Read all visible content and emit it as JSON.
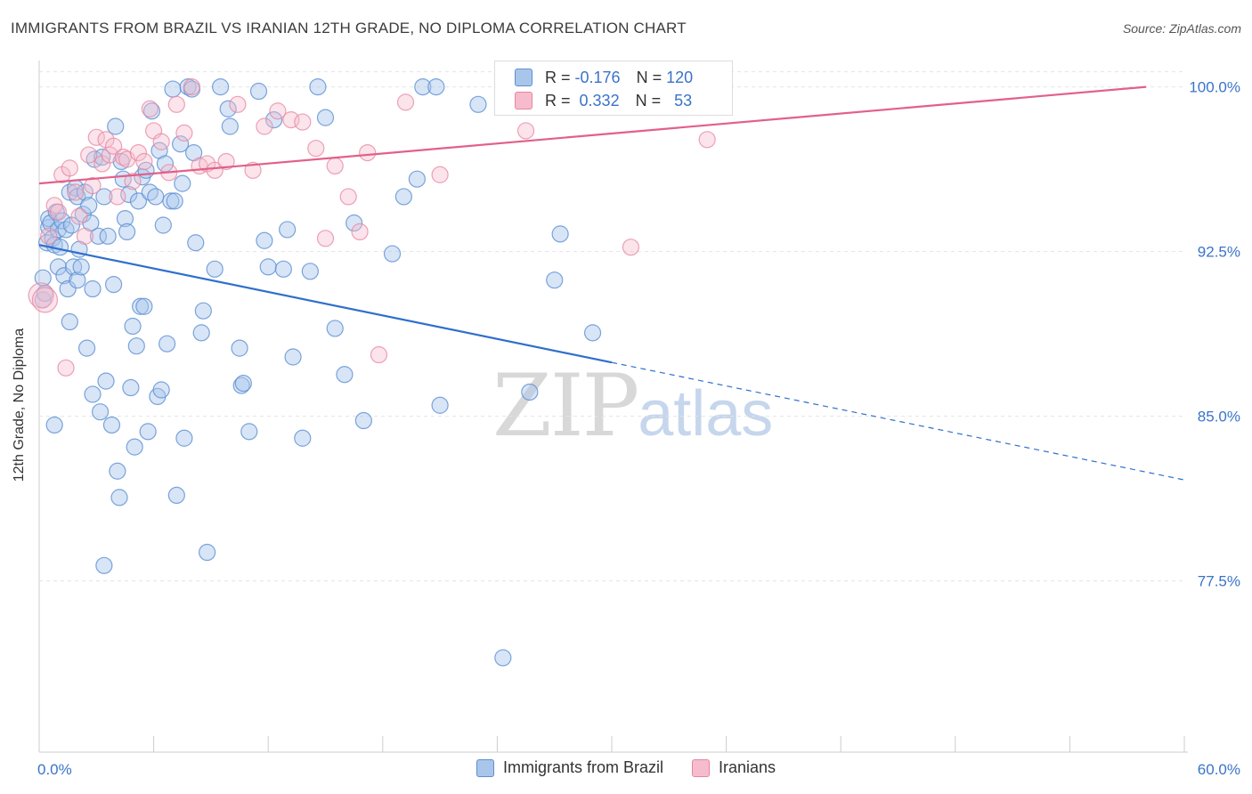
{
  "title": "IMMIGRANTS FROM BRAZIL VS IRANIAN 12TH GRADE, NO DIPLOMA CORRELATION CHART",
  "source": "Source: ZipAtlas.com",
  "watermark": {
    "zip": "ZIP",
    "atlas": "atlas"
  },
  "legend_top": {
    "rows": [
      {
        "r_label": "R =",
        "r_value": "-0.176",
        "n_label": "N =",
        "n_value": "120"
      },
      {
        "r_label": "R =",
        "r_value": "0.332",
        "n_label": "N =",
        "n_value": "53"
      }
    ]
  },
  "colors": {
    "blue_fill": "#a9c6ea",
    "blue_stroke": "#5b8fd3",
    "blue_line": "#2f6fcc",
    "pink_fill": "#f6bccd",
    "pink_stroke": "#e7849f",
    "pink_line": "#e2608a",
    "grid": "#e4e4e4",
    "tick_label": "#3a73c9"
  },
  "chart_data": {
    "type": "scatter",
    "title": "IMMIGRANTS FROM BRAZIL VS IRANIAN 12TH GRADE, NO DIPLOMA CORRELATION CHART",
    "xlabel": "",
    "ylabel": "12th Grade, No Diploma",
    "xlim": [
      0,
      60
    ],
    "ylim": [
      69.7,
      101.2
    ],
    "x_tick_labels": [
      {
        "value": 0,
        "label": "0.0%"
      },
      {
        "value": 60,
        "label": "60.0%"
      }
    ],
    "y_tick_labels": [
      {
        "value": 100.0,
        "label": "100.0%"
      },
      {
        "value": 92.5,
        "label": "92.5%"
      },
      {
        "value": 85.0,
        "label": "85.0%"
      },
      {
        "value": 77.5,
        "label": "77.5%"
      }
    ],
    "x_minor_ticks": [
      0,
      6,
      12,
      18,
      24,
      30,
      36,
      42,
      48,
      54,
      60
    ],
    "grid": true,
    "legend_position": "bottom",
    "series": [
      {
        "name": "Immigrants from Brazil",
        "color": "#a9c6ea",
        "stats": {
          "R": -0.176,
          "N": 120
        },
        "trend": {
          "x0": 0,
          "y0": 92.8,
          "x_solid_end": 30,
          "x1": 60,
          "y1": 82.1
        },
        "points": [
          [
            0.2,
            91.3
          ],
          [
            0.2,
            90.3
          ],
          [
            0.3,
            90.6
          ],
          [
            0.4,
            92.9
          ],
          [
            0.5,
            93.6
          ],
          [
            0.5,
            94.0
          ],
          [
            0.6,
            93.8
          ],
          [
            0.7,
            93.1
          ],
          [
            0.8,
            92.8
          ],
          [
            0.9,
            94.3
          ],
          [
            1.0,
            93.5
          ],
          [
            1.0,
            91.8
          ],
          [
            1.1,
            92.7
          ],
          [
            1.2,
            93.9
          ],
          [
            1.3,
            91.4
          ],
          [
            1.4,
            93.5
          ],
          [
            1.5,
            90.8
          ],
          [
            1.6,
            95.2
          ],
          [
            1.6,
            89.3
          ],
          [
            1.7,
            93.7
          ],
          [
            1.8,
            91.8
          ],
          [
            1.9,
            95.4
          ],
          [
            2.0,
            91.2
          ],
          [
            2.0,
            95.0
          ],
          [
            2.1,
            92.6
          ],
          [
            2.2,
            91.8
          ],
          [
            2.3,
            94.2
          ],
          [
            2.4,
            95.2
          ],
          [
            2.5,
            88.1
          ],
          [
            2.6,
            94.6
          ],
          [
            2.7,
            93.8
          ],
          [
            2.8,
            86.0
          ],
          [
            2.8,
            90.8
          ],
          [
            2.9,
            96.7
          ],
          [
            3.1,
            93.2
          ],
          [
            3.2,
            85.2
          ],
          [
            3.3,
            96.8
          ],
          [
            3.4,
            95.0
          ],
          [
            3.5,
            86.6
          ],
          [
            3.6,
            93.2
          ],
          [
            3.8,
            84.6
          ],
          [
            3.9,
            91.0
          ],
          [
            4.0,
            98.2
          ],
          [
            4.1,
            82.5
          ],
          [
            4.2,
            81.3
          ],
          [
            4.3,
            96.6
          ],
          [
            4.4,
            95.8
          ],
          [
            4.5,
            94.0
          ],
          [
            4.6,
            93.4
          ],
          [
            4.7,
            95.1
          ],
          [
            4.8,
            86.3
          ],
          [
            4.9,
            89.1
          ],
          [
            5.0,
            83.6
          ],
          [
            5.1,
            88.2
          ],
          [
            5.2,
            94.8
          ],
          [
            5.3,
            90.0
          ],
          [
            5.4,
            95.9
          ],
          [
            5.5,
            90.0
          ],
          [
            5.6,
            96.2
          ],
          [
            5.7,
            84.3
          ],
          [
            5.8,
            95.2
          ],
          [
            5.9,
            98.9
          ],
          [
            6.1,
            95.0
          ],
          [
            6.2,
            85.9
          ],
          [
            6.3,
            97.1
          ],
          [
            6.4,
            86.2
          ],
          [
            6.5,
            93.7
          ],
          [
            6.6,
            96.5
          ],
          [
            6.7,
            88.3
          ],
          [
            6.9,
            94.8
          ],
          [
            7.0,
            99.9
          ],
          [
            7.1,
            94.8
          ],
          [
            7.2,
            81.4
          ],
          [
            7.4,
            97.4
          ],
          [
            7.5,
            95.6
          ],
          [
            7.6,
            84.0
          ],
          [
            7.8,
            100.0
          ],
          [
            8.0,
            99.9
          ],
          [
            8.1,
            97.0
          ],
          [
            8.2,
            92.9
          ],
          [
            8.5,
            88.8
          ],
          [
            8.6,
            89.8
          ],
          [
            8.8,
            78.8
          ],
          [
            9.2,
            91.7
          ],
          [
            9.5,
            100.0
          ],
          [
            9.9,
            99.0
          ],
          [
            10.0,
            98.2
          ],
          [
            10.5,
            88.1
          ],
          [
            10.6,
            86.4
          ],
          [
            10.7,
            86.5
          ],
          [
            11.0,
            84.3
          ],
          [
            11.5,
            99.8
          ],
          [
            11.8,
            93.0
          ],
          [
            12.0,
            91.8
          ],
          [
            12.3,
            98.5
          ],
          [
            12.8,
            91.7
          ],
          [
            13.0,
            93.5
          ],
          [
            13.3,
            87.7
          ],
          [
            13.8,
            84.0
          ],
          [
            14.2,
            91.6
          ],
          [
            14.6,
            100.0
          ],
          [
            15.0,
            98.6
          ],
          [
            15.5,
            89.0
          ],
          [
            16.0,
            86.9
          ],
          [
            17.0,
            84.8
          ],
          [
            18.5,
            92.4
          ],
          [
            19.1,
            95.0
          ],
          [
            19.8,
            95.8
          ],
          [
            20.1,
            100.0
          ],
          [
            20.8,
            100.0
          ],
          [
            21.0,
            85.5
          ],
          [
            23.0,
            99.2
          ],
          [
            24.3,
            74.0
          ],
          [
            25.7,
            86.1
          ],
          [
            27.0,
            91.2
          ],
          [
            27.3,
            93.3
          ],
          [
            29.0,
            88.8
          ],
          [
            0.8,
            84.6
          ],
          [
            3.4,
            78.2
          ],
          [
            16.5,
            93.8
          ]
        ]
      },
      {
        "name": "Iranians",
        "color": "#f6bccd",
        "stats": {
          "R": 0.332,
          "N": 53
        },
        "trend": {
          "x0": 0,
          "y0": 95.6,
          "x1": 58,
          "y1": 100.0
        },
        "points": [
          [
            0.1,
            90.5
          ],
          [
            0.3,
            90.3
          ],
          [
            0.5,
            93.2
          ],
          [
            0.8,
            94.6
          ],
          [
            1.0,
            94.3
          ],
          [
            1.2,
            96.0
          ],
          [
            1.4,
            87.2
          ],
          [
            1.6,
            96.3
          ],
          [
            1.9,
            95.2
          ],
          [
            2.1,
            94.1
          ],
          [
            2.4,
            93.2
          ],
          [
            2.6,
            96.9
          ],
          [
            2.8,
            95.5
          ],
          [
            3.0,
            97.7
          ],
          [
            3.3,
            96.5
          ],
          [
            3.5,
            97.6
          ],
          [
            3.7,
            96.9
          ],
          [
            3.9,
            97.3
          ],
          [
            4.1,
            95.0
          ],
          [
            4.4,
            96.8
          ],
          [
            4.6,
            96.7
          ],
          [
            4.9,
            95.7
          ],
          [
            5.2,
            97.0
          ],
          [
            5.5,
            96.6
          ],
          [
            5.8,
            99.0
          ],
          [
            6.0,
            98.0
          ],
          [
            6.4,
            97.5
          ],
          [
            6.8,
            96.1
          ],
          [
            7.2,
            99.2
          ],
          [
            7.6,
            97.9
          ],
          [
            8.0,
            100.0
          ],
          [
            8.4,
            96.4
          ],
          [
            8.8,
            96.5
          ],
          [
            9.2,
            96.2
          ],
          [
            9.8,
            96.6
          ],
          [
            10.4,
            99.2
          ],
          [
            11.2,
            96.2
          ],
          [
            11.8,
            98.2
          ],
          [
            12.5,
            98.9
          ],
          [
            13.2,
            98.5
          ],
          [
            13.8,
            98.4
          ],
          [
            14.5,
            97.2
          ],
          [
            15.0,
            93.1
          ],
          [
            15.5,
            96.4
          ],
          [
            16.2,
            95.0
          ],
          [
            16.8,
            93.4
          ],
          [
            17.2,
            97.0
          ],
          [
            17.8,
            87.8
          ],
          [
            19.2,
            99.3
          ],
          [
            21.0,
            96.0
          ],
          [
            25.5,
            98.0
          ],
          [
            31.0,
            92.7
          ],
          [
            35.0,
            97.6
          ]
        ]
      }
    ]
  },
  "legend_bottom": [
    {
      "label": "Immigrants from Brazil"
    },
    {
      "label": "Iranians"
    }
  ]
}
